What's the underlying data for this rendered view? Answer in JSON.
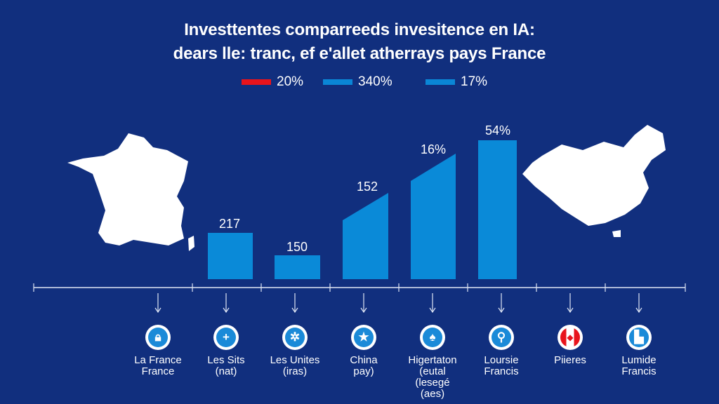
{
  "title_line1": "Investtentes comparreeds invesitence en IA:",
  "title_line2": "dears lle: tranc, ef e'allet atherrays pays France",
  "legend": [
    {
      "label": "20%",
      "color": "#e8141c"
    },
    {
      "label": "340%",
      "color": "#0a86d6"
    },
    {
      "label": "17%",
      "color": "#0a86d6"
    }
  ],
  "chart_data": {
    "type": "bar",
    "title": "Investtentes comparreeds invesitence en IA: dears lle: tranc, ef e'allet atherrays pays France",
    "data_labels": [
      "217",
      "150",
      "152",
      "16%",
      "54%"
    ],
    "bar_color": "#0a8ad8",
    "background": "#112f7e",
    "categories": [
      {
        "line1": "La France",
        "line2": "France",
        "icon": "lock-icon"
      },
      {
        "line1": "Les Sits",
        "line2": "(nat)",
        "icon": "plus-icon"
      },
      {
        "line1": "Les Unites",
        "line2": "(iras)",
        "icon": "eu-stars-icon"
      },
      {
        "line1": "China",
        "line2": "pay)",
        "icon": "star-icon"
      },
      {
        "line1": "Higertaton",
        "line2": "(eutal",
        "line3": "(lesegé",
        "line4": "(aes)",
        "icon": "tree-icon"
      },
      {
        "line1": "Loursie",
        "line2": "Francis",
        "icon": "satellite-icon"
      },
      {
        "line1": "Piieres",
        "icon": "canada-flag-icon"
      },
      {
        "line1": "Lumide",
        "line2": "Francis",
        "icon": "people-icon"
      }
    ]
  }
}
